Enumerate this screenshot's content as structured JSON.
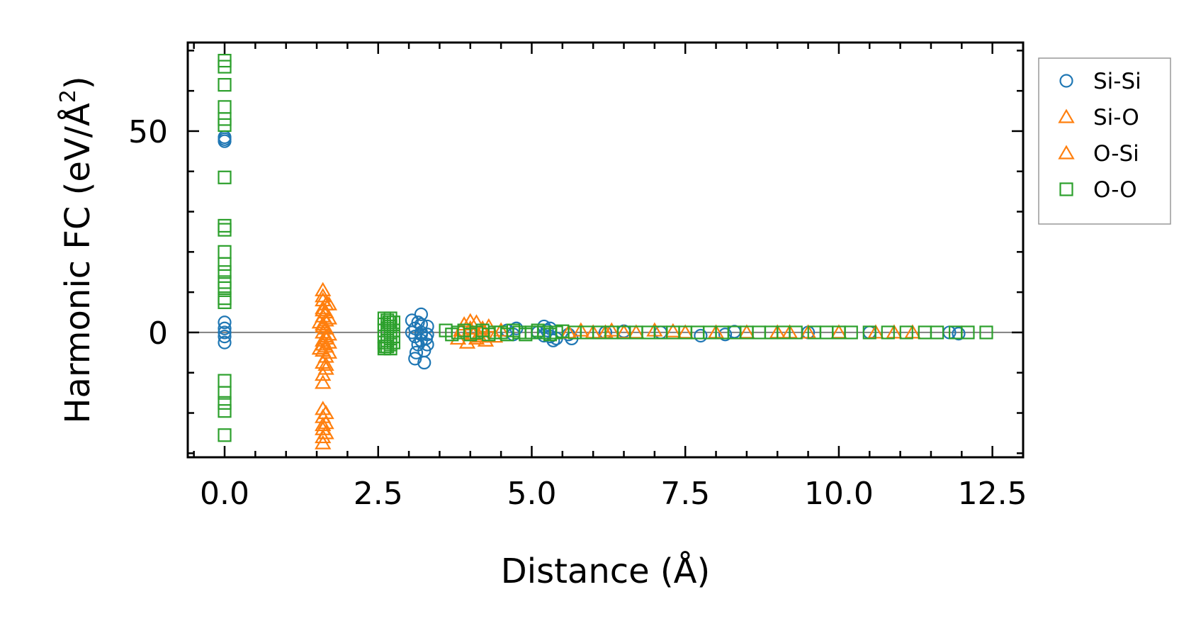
{
  "chart_data": {
    "type": "scatter",
    "xlabel": "Distance (Å)",
    "ylabel_main": "Harmonic FC (eV/Å",
    "ylabel_sup": "2",
    "ylabel_close": ")",
    "xlim": [
      -0.6,
      13.0
    ],
    "ylim": [
      -31,
      72
    ],
    "x_ticks": [
      0.0,
      2.5,
      5.0,
      7.5,
      10.0,
      12.5
    ],
    "x_tick_labels": [
      "0.0",
      "2.5",
      "5.0",
      "7.5",
      "10.0",
      "12.5"
    ],
    "y_ticks": [
      0,
      50
    ],
    "y_tick_labels": [
      "0",
      "50"
    ],
    "zero_line": 0,
    "legend_position": "outside-right-top",
    "colors": {
      "si_si": "#1f77b4",
      "si_o": "#ff7f0e",
      "o_o": "#2ca02c",
      "zero_line": "#808080"
    },
    "series": [
      {
        "name": "Si-Si",
        "marker": "circle",
        "color": "#1f77b4",
        "points": [
          [
            0.0,
            48.5
          ],
          [
            0.0,
            48.0
          ],
          [
            0.0,
            47.5
          ],
          [
            0.0,
            2.5
          ],
          [
            0.0,
            1.0
          ],
          [
            0.0,
            0.0
          ],
          [
            0.0,
            -1.0
          ],
          [
            0.0,
            -2.5
          ],
          [
            3.05,
            3.0
          ],
          [
            3.1,
            1.0
          ],
          [
            3.1,
            -1.0
          ],
          [
            3.15,
            -3.0
          ],
          [
            3.1,
            -6.5
          ],
          [
            3.2,
            4.5
          ],
          [
            3.2,
            2.0
          ],
          [
            3.2,
            0.0
          ],
          [
            3.2,
            -2.0
          ],
          [
            3.25,
            -4.5
          ],
          [
            3.25,
            -7.5
          ],
          [
            3.3,
            1.5
          ],
          [
            3.3,
            -0.5
          ],
          [
            3.3,
            -3.0
          ],
          [
            3.05,
            0.0
          ],
          [
            3.15,
            2.5
          ],
          [
            3.2,
            -0.5
          ],
          [
            3.28,
            -1.5
          ],
          [
            3.12,
            -5.0
          ],
          [
            4.6,
            0.5
          ],
          [
            4.7,
            -0.5
          ],
          [
            4.75,
            1.0
          ],
          [
            5.1,
            0.0
          ],
          [
            5.2,
            1.5
          ],
          [
            5.25,
            0.5
          ],
          [
            5.3,
            -1.0
          ],
          [
            5.35,
            -2.0
          ],
          [
            5.4,
            -1.5
          ],
          [
            5.2,
            -0.8
          ],
          [
            5.3,
            1.0
          ],
          [
            5.6,
            -0.5
          ],
          [
            5.65,
            -1.5
          ],
          [
            6.2,
            0.0
          ],
          [
            6.5,
            0.3
          ],
          [
            7.1,
            0.0
          ],
          [
            7.75,
            -0.8
          ],
          [
            8.15,
            -0.5
          ],
          [
            8.3,
            0.2
          ],
          [
            9.5,
            0.0
          ],
          [
            10.5,
            0.0
          ],
          [
            11.8,
            0.0
          ],
          [
            11.95,
            -0.3
          ]
        ]
      },
      {
        "name": "Si-O",
        "marker": "triangle",
        "color": "#ff7f0e",
        "points": [
          [
            1.6,
            10.5
          ],
          [
            1.6,
            8.0
          ],
          [
            1.6,
            6.0
          ],
          [
            1.65,
            5.0
          ],
          [
            1.6,
            4.0
          ],
          [
            1.65,
            3.0
          ],
          [
            1.6,
            2.0
          ],
          [
            1.65,
            1.0
          ],
          [
            1.6,
            0.0
          ],
          [
            1.65,
            -1.0
          ],
          [
            1.6,
            -2.0
          ],
          [
            1.65,
            -3.5
          ],
          [
            1.6,
            -4.5
          ],
          [
            1.65,
            -6.0
          ],
          [
            1.6,
            -7.5
          ],
          [
            1.65,
            -9.0
          ],
          [
            1.6,
            -10.5
          ],
          [
            1.6,
            -19.0
          ],
          [
            1.6,
            -21.0
          ],
          [
            1.65,
            -22.5
          ],
          [
            1.6,
            -24.0
          ],
          [
            1.6,
            -26.0
          ],
          [
            1.6,
            -27.5
          ],
          [
            1.7,
            7.0
          ],
          [
            1.7,
            3.5
          ],
          [
            1.7,
            -0.5
          ],
          [
            1.7,
            -2.5
          ],
          [
            1.7,
            -5.0
          ],
          [
            1.55,
            2.5
          ],
          [
            1.55,
            -4.0
          ],
          [
            3.9,
            2.0
          ],
          [
            4.0,
            1.0
          ],
          [
            4.1,
            2.5
          ],
          [
            4.15,
            -1.0
          ],
          [
            4.2,
            0.5
          ],
          [
            4.25,
            -2.0
          ],
          [
            3.8,
            -1.5
          ],
          [
            4.05,
            -0.5
          ],
          [
            4.3,
            1.5
          ],
          [
            4.4,
            -1.0
          ],
          [
            4.5,
            0.5
          ],
          [
            3.95,
            -2.5
          ],
          [
            5.6,
            0.0
          ],
          [
            5.8,
            0.5
          ],
          [
            6.0,
            0.0
          ],
          [
            6.3,
            0.5
          ],
          [
            6.5,
            0.0
          ],
          [
            6.7,
            0.0
          ],
          [
            7.0,
            0.5
          ],
          [
            7.5,
            0.0
          ],
          [
            8.0,
            0.0
          ],
          [
            8.5,
            0.0
          ],
          [
            9.0,
            0.0
          ],
          [
            9.5,
            0.0
          ],
          [
            10.0,
            0.0
          ],
          [
            10.6,
            0.0
          ],
          [
            11.2,
            0.0
          ]
        ]
      },
      {
        "name": "O-Si",
        "marker": "triangle",
        "color": "#ff7f0e",
        "points": [
          [
            1.6,
            9.0
          ],
          [
            1.65,
            7.0
          ],
          [
            1.6,
            5.5
          ],
          [
            1.6,
            1.5
          ],
          [
            1.65,
            -1.5
          ],
          [
            1.6,
            -3.0
          ],
          [
            1.65,
            -8.0
          ],
          [
            1.6,
            -12.5
          ],
          [
            1.65,
            -20.0
          ],
          [
            1.6,
            -23.0
          ],
          [
            1.65,
            -25.0
          ],
          [
            3.85,
            0.5
          ],
          [
            4.0,
            2.8
          ],
          [
            4.1,
            -1.5
          ],
          [
            4.2,
            1.0
          ],
          [
            6.2,
            0.0
          ],
          [
            7.3,
            0.3
          ],
          [
            9.2,
            0.0
          ],
          [
            10.9,
            0.0
          ]
        ]
      },
      {
        "name": "O-O",
        "marker": "square",
        "color": "#2ca02c",
        "points": [
          [
            0.0,
            67.5
          ],
          [
            0.0,
            66.0
          ],
          [
            0.0,
            61.5
          ],
          [
            0.0,
            56.0
          ],
          [
            0.0,
            53.0
          ],
          [
            0.0,
            51.5
          ],
          [
            0.0,
            38.5
          ],
          [
            0.0,
            26.5
          ],
          [
            0.0,
            25.5
          ],
          [
            0.0,
            20.0
          ],
          [
            0.0,
            17.0
          ],
          [
            0.0,
            15.0
          ],
          [
            0.0,
            12.5
          ],
          [
            0.0,
            11.0
          ],
          [
            0.0,
            8.5
          ],
          [
            0.0,
            7.5
          ],
          [
            0.0,
            -12.0
          ],
          [
            0.0,
            -15.0
          ],
          [
            0.0,
            -17.5
          ],
          [
            0.0,
            -19.5
          ],
          [
            0.0,
            -25.5
          ],
          [
            2.6,
            3.5
          ],
          [
            2.6,
            2.0
          ],
          [
            2.6,
            0.5
          ],
          [
            2.6,
            -1.0
          ],
          [
            2.6,
            -2.5
          ],
          [
            2.6,
            -4.0
          ],
          [
            2.65,
            3.0
          ],
          [
            2.65,
            1.0
          ],
          [
            2.65,
            -0.5
          ],
          [
            2.65,
            -2.0
          ],
          [
            2.65,
            -3.5
          ],
          [
            2.7,
            3.5
          ],
          [
            2.7,
            1.5
          ],
          [
            2.7,
            0.0
          ],
          [
            2.7,
            -1.5
          ],
          [
            2.7,
            -3.0
          ],
          [
            2.7,
            -4.0
          ],
          [
            2.75,
            2.5
          ],
          [
            2.75,
            0.5
          ],
          [
            2.75,
            -1.0
          ],
          [
            2.75,
            -2.5
          ],
          [
            2.62,
            -3.5
          ],
          [
            2.68,
            2.5
          ],
          [
            3.6,
            0.5
          ],
          [
            3.7,
            -0.5
          ],
          [
            3.8,
            0.0
          ],
          [
            3.9,
            0.5
          ],
          [
            4.0,
            -0.5
          ],
          [
            4.1,
            0.0
          ],
          [
            4.2,
            0.5
          ],
          [
            4.3,
            -0.5
          ],
          [
            4.4,
            0.0
          ],
          [
            4.5,
            0.0
          ],
          [
            4.6,
            -0.5
          ],
          [
            4.7,
            0.5
          ],
          [
            4.8,
            0.0
          ],
          [
            4.9,
            -0.5
          ],
          [
            5.0,
            0.0
          ],
          [
            5.1,
            0.5
          ],
          [
            5.2,
            0.0
          ],
          [
            5.3,
            -0.5
          ],
          [
            5.4,
            0.0
          ],
          [
            5.5,
            0.3
          ],
          [
            5.7,
            0.0
          ],
          [
            5.9,
            0.0
          ],
          [
            6.1,
            0.0
          ],
          [
            6.3,
            0.0
          ],
          [
            6.5,
            0.0
          ],
          [
            6.7,
            0.0
          ],
          [
            6.9,
            0.0
          ],
          [
            7.1,
            0.0
          ],
          [
            7.3,
            0.0
          ],
          [
            7.5,
            0.0
          ],
          [
            7.7,
            0.0
          ],
          [
            7.9,
            0.0
          ],
          [
            8.1,
            0.0
          ],
          [
            8.3,
            0.0
          ],
          [
            8.5,
            0.0
          ],
          [
            8.7,
            0.0
          ],
          [
            8.9,
            0.0
          ],
          [
            9.1,
            0.0
          ],
          [
            9.3,
            0.0
          ],
          [
            9.6,
            0.0
          ],
          [
            9.8,
            0.0
          ],
          [
            10.0,
            0.0
          ],
          [
            10.2,
            0.0
          ],
          [
            10.5,
            0.0
          ],
          [
            10.8,
            0.0
          ],
          [
            11.1,
            0.0
          ],
          [
            11.4,
            0.0
          ],
          [
            11.6,
            0.0
          ],
          [
            11.9,
            0.0
          ],
          [
            12.1,
            0.0
          ],
          [
            12.4,
            0.0
          ]
        ]
      }
    ]
  }
}
